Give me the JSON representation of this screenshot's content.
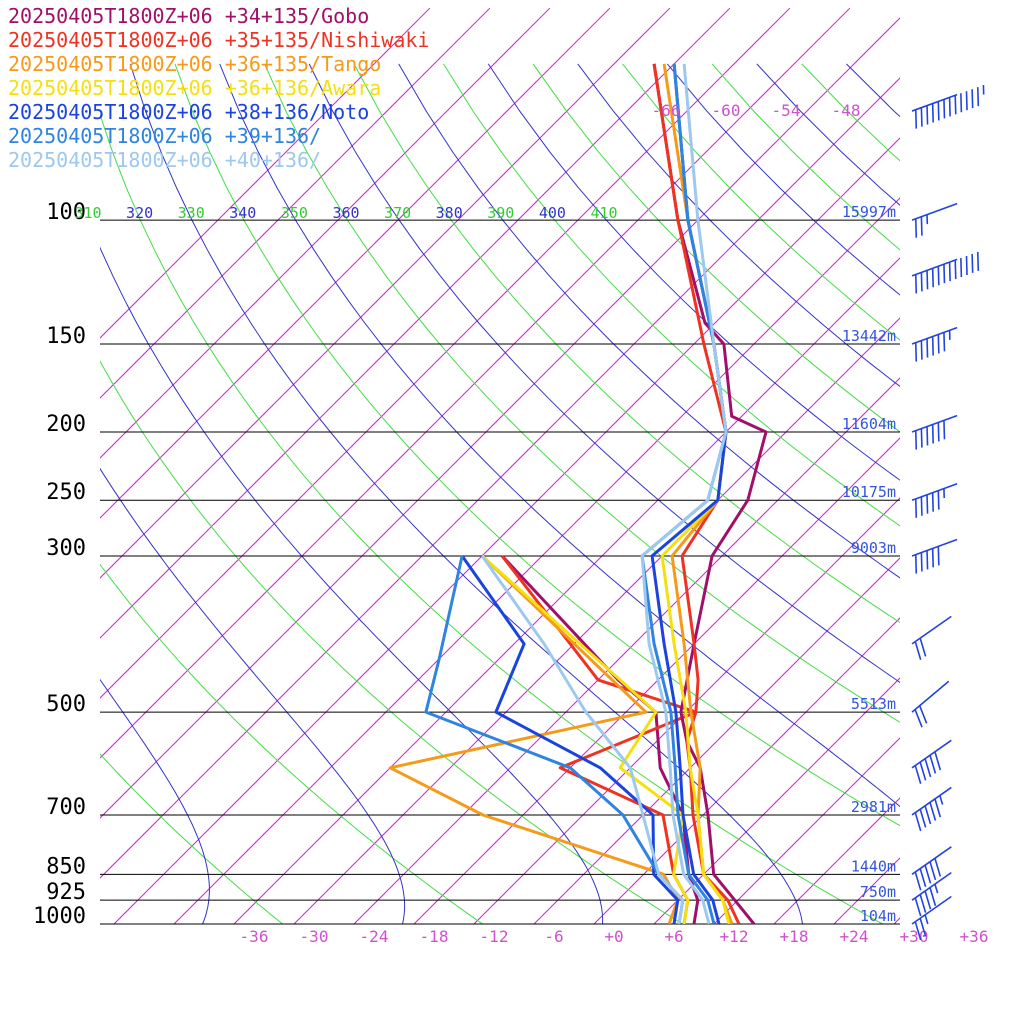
{
  "chart_data": {
    "type": "line",
    "title": "",
    "xlabel": "",
    "ylabel": "",
    "xlim": [
      -36,
      36
    ],
    "ylim": [
      1000,
      100
    ],
    "grid": true,
    "legend_placement": "top-left",
    "pressure_levels": [
      {
        "p": 100,
        "label": "100",
        "height": "15997m"
      },
      {
        "p": 150,
        "label": "150",
        "height": "13442m"
      },
      {
        "p": 200,
        "label": "200",
        "height": "11604m"
      },
      {
        "p": 250,
        "label": "250",
        "height": "10175m"
      },
      {
        "p": 300,
        "label": "300",
        "height": "9003m"
      },
      {
        "p": 500,
        "label": "500",
        "height": "5513m"
      },
      {
        "p": 700,
        "label": "700",
        "height": "2981m"
      },
      {
        "p": 850,
        "label": "850",
        "height": "1440m"
      },
      {
        "p": 925,
        "label": "925",
        "height": "750m"
      },
      {
        "p": 1000,
        "label": "1000",
        "height": "104m"
      }
    ],
    "temperature_ticks": [
      {
        "t": -36,
        "label": "-36"
      },
      {
        "t": -30,
        "label": "-30"
      },
      {
        "t": -24,
        "label": "-24"
      },
      {
        "t": -18,
        "label": "-18"
      },
      {
        "t": -12,
        "label": "-12"
      },
      {
        "t": -6,
        "label": "-6"
      },
      {
        "t": 0,
        "label": "+0"
      },
      {
        "t": 6,
        "label": "+6"
      },
      {
        "t": 12,
        "label": "+12"
      },
      {
        "t": 18,
        "label": "+18"
      },
      {
        "t": 24,
        "label": "+24"
      },
      {
        "t": 30,
        "label": "+30"
      },
      {
        "t": 36,
        "label": "+36"
      }
    ],
    "upper_isotherm_labels": [
      {
        "t": -66,
        "label": "-66"
      },
      {
        "t": -60,
        "label": "-60"
      },
      {
        "t": -54,
        "label": "-54"
      },
      {
        "t": -48,
        "label": "-48"
      }
    ],
    "theta_e_labels": [
      {
        "label": "310",
        "color": "#33cc33"
      },
      {
        "label": "320",
        "color": "#3333cc"
      },
      {
        "label": "330",
        "color": "#33cc33"
      },
      {
        "label": "340",
        "color": "#3333cc"
      },
      {
        "label": "350",
        "color": "#33cc33"
      },
      {
        "label": "360",
        "color": "#3333cc"
      },
      {
        "label": "370",
        "color": "#33cc33"
      },
      {
        "label": "380",
        "color": "#3333cc"
      },
      {
        "label": "390",
        "color": "#33cc33"
      },
      {
        "label": "400",
        "color": "#3333cc"
      },
      {
        "label": "410",
        "color": "#33cc33"
      }
    ],
    "series": [
      {
        "name": "20250405T1800Z+06 +34+135/Gobo",
        "color": "#a0106a",
        "points": [
          [
            1000,
            14
          ],
          [
            925,
            9.7
          ],
          [
            850,
            5
          ],
          [
            700,
            -1.5
          ],
          [
            600,
            -7
          ],
          [
            550,
            -11
          ],
          [
            500,
            -14.5
          ],
          [
            400,
            -20
          ],
          [
            300,
            -27
          ],
          [
            250,
            -29
          ],
          [
            200,
            -34
          ],
          [
            190,
            -39
          ],
          [
            150,
            -47
          ],
          [
            140,
            -51
          ],
          [
            100,
            -64
          ],
          [
            60,
            -82
          ]
        ]
      },
      {
        "name": "20250405T1800Z+06 +35+135/Nishiwaki",
        "color": "#ee3322",
        "points": [
          [
            1000,
            12.5
          ],
          [
            925,
            9
          ],
          [
            850,
            4
          ],
          [
            700,
            -3
          ],
          [
            600,
            -8
          ],
          [
            550,
            -11
          ],
          [
            500,
            -13
          ],
          [
            450,
            -16
          ],
          [
            400,
            -20
          ],
          [
            300,
            -30
          ],
          [
            250,
            -32
          ],
          [
            200,
            -38
          ],
          [
            150,
            -49
          ],
          [
            100,
            -64
          ],
          [
            60,
            -82
          ]
        ]
      },
      {
        "name": "20250405T1800Z+06 +36+135/Tango",
        "color": "#f59a1a",
        "points": [
          [
            1000,
            11.8
          ],
          [
            925,
            8.5
          ],
          [
            850,
            4
          ],
          [
            700,
            -2.5
          ],
          [
            600,
            -7
          ],
          [
            500,
            -13.5
          ],
          [
            400,
            -21
          ],
          [
            300,
            -31
          ],
          [
            250,
            -32
          ],
          [
            200,
            -38
          ],
          [
            150,
            -48
          ],
          [
            100,
            -63
          ],
          [
            60,
            -81
          ]
        ]
      },
      {
        "name": "20250405T1800Z+06 +36+136/Awara",
        "color": "#f4e010",
        "points": [
          [
            1000,
            11.5
          ],
          [
            925,
            8.5
          ],
          [
            850,
            4
          ],
          [
            700,
            -2.5
          ],
          [
            600,
            -8
          ],
          [
            500,
            -14
          ],
          [
            400,
            -22
          ],
          [
            300,
            -32
          ],
          [
            250,
            -32
          ],
          [
            200,
            -38
          ],
          [
            150,
            -48
          ],
          [
            100,
            -63
          ],
          [
            60,
            -80
          ]
        ]
      },
      {
        "name": "20250405T1800Z+06 +38+136/Noto",
        "color": "#1a44dd",
        "points": [
          [
            1000,
            10.5
          ],
          [
            925,
            7.5
          ],
          [
            850,
            3
          ],
          [
            700,
            -4
          ],
          [
            600,
            -9
          ],
          [
            500,
            -15
          ],
          [
            400,
            -23
          ],
          [
            300,
            -33
          ],
          [
            250,
            -32
          ],
          [
            200,
            -38
          ],
          [
            150,
            -48
          ],
          [
            100,
            -63
          ],
          [
            60,
            -80
          ]
        ]
      },
      {
        "name": "20250405T1800Z+06 +39+136/",
        "color": "#2e84e0",
        "points": [
          [
            1000,
            10
          ],
          [
            925,
            7
          ],
          [
            850,
            2.5
          ],
          [
            700,
            -4.5
          ],
          [
            600,
            -9.5
          ],
          [
            500,
            -15.5
          ],
          [
            400,
            -24
          ],
          [
            300,
            -34
          ],
          [
            250,
            -33
          ],
          [
            200,
            -38
          ],
          [
            150,
            -48
          ],
          [
            100,
            -63
          ],
          [
            60,
            -80
          ]
        ]
      },
      {
        "name": "20250405T1800Z+06 +40+136/",
        "color": "#9dc8ef",
        "points": [
          [
            1000,
            9.5
          ],
          [
            925,
            6.5
          ],
          [
            850,
            2
          ],
          [
            700,
            -5
          ],
          [
            600,
            -10
          ],
          [
            500,
            -16
          ],
          [
            400,
            -24.5
          ],
          [
            300,
            -34
          ],
          [
            250,
            -33
          ],
          [
            200,
            -38
          ],
          [
            150,
            -48
          ],
          [
            100,
            -62
          ],
          [
            60,
            -79
          ]
        ]
      }
    ],
    "dewpoint_series": [
      {
        "name": "20250405T1800Z+06 +34+135/Gobo",
        "color": "#a0106a",
        "points": [
          [
            1000,
            8
          ],
          [
            925,
            6
          ],
          [
            850,
            2.5
          ],
          [
            700,
            -4
          ],
          [
            600,
            -11
          ],
          [
            500,
            -17
          ],
          [
            450,
            -24
          ],
          [
            300,
            -48
          ]
        ]
      },
      {
        "name": "20250405T1800Z+06 +35+135/Nishiwaki",
        "color": "#ee3322",
        "points": [
          [
            1000,
            7
          ],
          [
            925,
            5
          ],
          [
            850,
            1
          ],
          [
            700,
            -6
          ],
          [
            600,
            -21
          ],
          [
            500,
            -13
          ],
          [
            450,
            -26
          ],
          [
            300,
            -48
          ]
        ]
      },
      {
        "name": "20250405T1800Z+06 +36+135/Tango",
        "color": "#f59a1a",
        "points": [
          [
            1000,
            5.5
          ],
          [
            925,
            4
          ],
          [
            850,
            0
          ],
          [
            700,
            -24
          ],
          [
            600,
            -38
          ],
          [
            500,
            -18
          ],
          [
            300,
            -50
          ]
        ]
      },
      {
        "name": "20250405T1800Z+06 +36+136/Awara",
        "color": "#f4e010",
        "points": [
          [
            1000,
            7
          ],
          [
            925,
            5
          ],
          [
            850,
            1
          ],
          [
            700,
            -4
          ],
          [
            600,
            -15
          ],
          [
            500,
            -17
          ],
          [
            300,
            -50
          ]
        ]
      },
      {
        "name": "20250405T1800Z+06 +38+136/Noto",
        "color": "#1a44dd",
        "points": [
          [
            1000,
            6
          ],
          [
            925,
            4
          ],
          [
            850,
            -1
          ],
          [
            700,
            -7
          ],
          [
            600,
            -17
          ],
          [
            500,
            -33
          ],
          [
            400,
            -37
          ],
          [
            300,
            -52
          ]
        ]
      },
      {
        "name": "20250405T1800Z+06 +39+136/",
        "color": "#2e84e0",
        "points": [
          [
            1000,
            6.5
          ],
          [
            925,
            4.5
          ],
          [
            850,
            -0.5
          ],
          [
            700,
            -10
          ],
          [
            600,
            -20
          ],
          [
            500,
            -40
          ],
          [
            420,
            -44
          ],
          [
            300,
            -52
          ]
        ]
      },
      {
        "name": "20250405T1800Z+06 +40+136/",
        "color": "#9dc8ef",
        "points": [
          [
            1000,
            6.5
          ],
          [
            925,
            4.5
          ],
          [
            850,
            -0.5
          ],
          [
            700,
            -8
          ],
          [
            600,
            -14
          ],
          [
            500,
            -24
          ],
          [
            400,
            -35
          ],
          [
            300,
            -50
          ]
        ]
      }
    ],
    "wind_barbs": [
      {
        "p": 70,
        "dir": 250,
        "kt": 125
      },
      {
        "p": 120,
        "dir": 250,
        "kt": 120
      },
      {
        "p": 100,
        "dir": 250,
        "kt": 25
      },
      {
        "p": 150,
        "dir": 250,
        "kt": 65
      },
      {
        "p": 200,
        "dir": 250,
        "kt": 60
      },
      {
        "p": 250,
        "dir": 250,
        "kt": 55
      },
      {
        "p": 300,
        "dir": 250,
        "kt": 50
      },
      {
        "p": 400,
        "dir": 235,
        "kt": 20
      },
      {
        "p": 500,
        "dir": 230,
        "kt": 20
      },
      {
        "p": 600,
        "dir": 235,
        "kt": 50
      },
      {
        "p": 700,
        "dir": 235,
        "kt": 55
      },
      {
        "p": 850,
        "dir": 235,
        "kt": 50
      },
      {
        "p": 925,
        "dir": 235,
        "kt": 45
      },
      {
        "p": 1000,
        "dir": 235,
        "kt": 25
      }
    ]
  }
}
